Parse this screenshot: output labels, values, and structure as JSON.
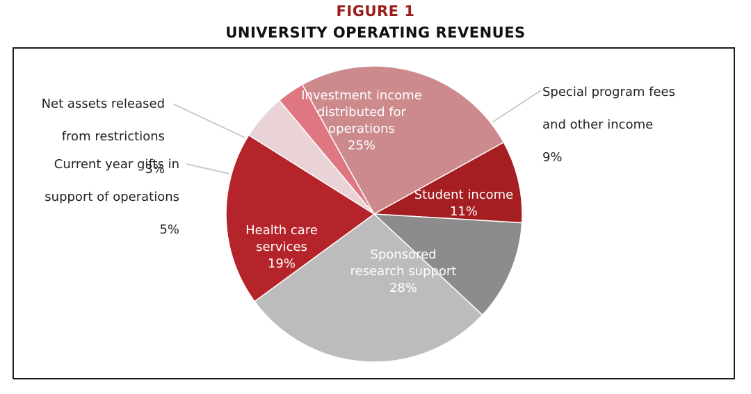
{
  "figure_label": "FIGURE 1",
  "colors": {
    "figure_label": "#9b1c1c",
    "title": "#111111",
    "leader": "#cccccc",
    "slice_edge": "#ffffff"
  },
  "chart_data": {
    "type": "pie",
    "title": "UNIVERSITY OPERATING REVENUES",
    "start_angle_deg": 61,
    "direction": "clockwise",
    "slices": [
      {
        "key": "special",
        "label_lines": [
          "Special program fees",
          "and other income"
        ],
        "pct_label": "9%",
        "value": 9,
        "color": "#a41e22",
        "label_position": "outside-right"
      },
      {
        "key": "student",
        "label_lines": [
          "Student income"
        ],
        "pct_label": "11%",
        "value": 11,
        "color": "#8c8c8c",
        "label_position": "inside"
      },
      {
        "key": "sponsored",
        "label_lines": [
          "Sponsored",
          "research support"
        ],
        "pct_label": "28%",
        "value": 28,
        "color": "#bcbcbc",
        "label_position": "inside"
      },
      {
        "key": "health",
        "label_lines": [
          "Health care",
          "services"
        ],
        "pct_label": "19%",
        "value": 19,
        "color": "#b5242a",
        "label_position": "inside"
      },
      {
        "key": "gifts",
        "label_lines": [
          "Current year gifts in",
          "support of operations"
        ],
        "pct_label": "5%",
        "value": 5,
        "color": "#e9d3d6",
        "label_position": "outside-left"
      },
      {
        "key": "netassets",
        "label_lines": [
          "Net assets released",
          "from restrictions"
        ],
        "pct_label": "3%",
        "value": 3,
        "color": "#df7782",
        "label_position": "outside-left"
      },
      {
        "key": "investment",
        "label_lines": [
          "Investment income",
          "distributed for",
          "operations"
        ],
        "pct_label": "25%",
        "value": 25,
        "color": "#cc8a8d",
        "label_position": "inside"
      }
    ]
  }
}
